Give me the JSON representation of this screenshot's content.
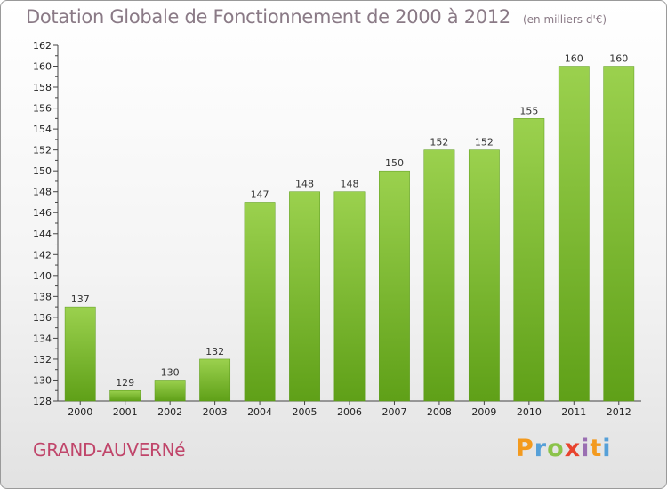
{
  "header": {
    "title": "Dotation Globale de Fonctionnement de 2000 à 2012",
    "unit": "(en milliers d'€)"
  },
  "footer": {
    "commune": "GRAND-AUVERNé",
    "logo": [
      "P",
      "r",
      "o",
      "x",
      "i",
      "t",
      "i"
    ],
    "logo_colors": [
      "#f39a1e",
      "#56a0d8",
      "#8bc34a",
      "#e8432e",
      "#9a6fb2",
      "#f39a1e",
      "#56a0d8"
    ]
  },
  "chart_data": {
    "type": "bar",
    "title": "Dotation Globale de Fonctionnement de 2000 à 2012",
    "categories": [
      "2000",
      "2001",
      "2002",
      "2003",
      "2004",
      "2005",
      "2006",
      "2007",
      "2008",
      "2009",
      "2010",
      "2011",
      "2012"
    ],
    "values": [
      137,
      129,
      130,
      132,
      147,
      148,
      148,
      150,
      152,
      152,
      155,
      160,
      160
    ],
    "ylim": [
      128,
      162
    ],
    "yticks": [
      128,
      130,
      132,
      134,
      136,
      138,
      140,
      142,
      144,
      146,
      148,
      150,
      152,
      154,
      156,
      158,
      160,
      162
    ],
    "grid": false,
    "legend": "none",
    "bar_color": "#7fba3a"
  }
}
